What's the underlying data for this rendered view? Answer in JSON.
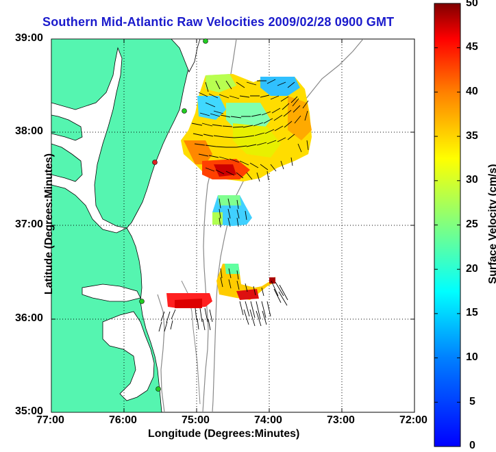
{
  "title": "Southern Mid-Atlantic Raw Velocities 2009/02/28 0900 GMT",
  "xlabel": "Longitude (Degrees:Minutes)",
  "ylabel": "Latitude (Degrees:Minutes)",
  "colorbar_label": "Surface Velocity (cm/s)",
  "x_ticks": [
    "77:00",
    "76:00",
    "75:00",
    "74:00",
    "73:00",
    "72:00"
  ],
  "y_ticks": [
    "39:00",
    "38:00",
    "37:00",
    "36:00",
    "35:00"
  ],
  "colorbar_ticks": [
    "50",
    "45",
    "40",
    "35",
    "30",
    "25",
    "20",
    "15",
    "10",
    "5",
    "0"
  ],
  "colors": {
    "land": "#55f5b0",
    "title": "#1a1acc",
    "site_green": "#22cc22",
    "site_red": "#dd2222"
  },
  "colorbar": {
    "min": 0,
    "max": 50,
    "colormap": "jet"
  }
}
